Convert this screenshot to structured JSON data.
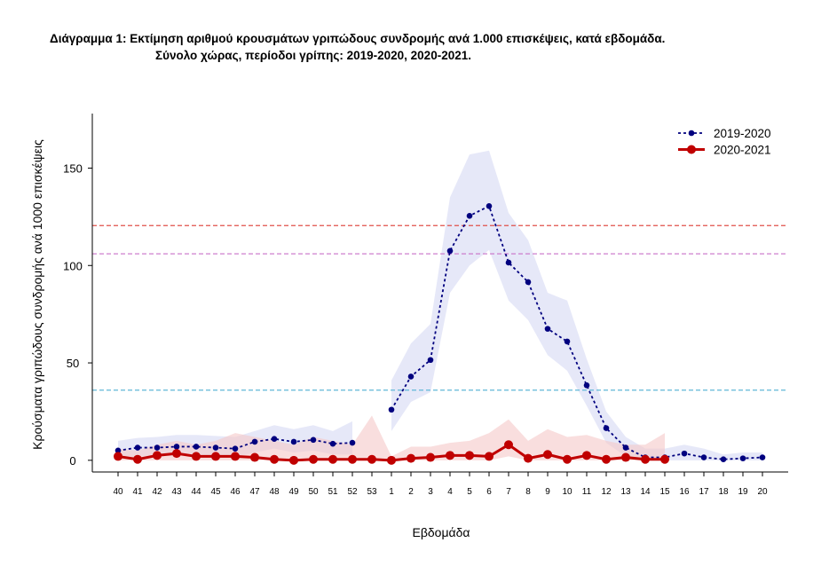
{
  "header": {
    "title_line1": "Διάγραμμα 1: Εκτίμηση αριθμού κρουσμάτων γριπώδους συνδρομής ανά 1.000 επισκέψεις, κατά εβδομάδα.",
    "title_line2": "Σύνολο χώρας, περίοδοι γρίπης:  2019-2020, 2020-2021."
  },
  "chart_data": {
    "type": "line",
    "xlabel": "Εβδομάδα",
    "ylabel": "Κρούσματα γριπώδους συνδρομής ανά 1000 επισκέψεις",
    "ylim": [
      -6,
      178
    ],
    "yticks": [
      0,
      50,
      100,
      150
    ],
    "categories": [
      "40",
      "41",
      "42",
      "43",
      "44",
      "45",
      "46",
      "47",
      "48",
      "49",
      "50",
      "51",
      "52",
      "53",
      "1",
      "2",
      "3",
      "4",
      "5",
      "6",
      "7",
      "8",
      "9",
      "10",
      "11",
      "12",
      "13",
      "14",
      "15",
      "16",
      "17",
      "18",
      "19",
      "20"
    ],
    "legend_position": "top-right",
    "reference_lines": [
      {
        "value": 120.5,
        "color": "#e0504a"
      },
      {
        "value": 106,
        "color": "#c870c8"
      },
      {
        "value": 36,
        "color": "#60b8d8"
      }
    ],
    "series": [
      {
        "name": "2019-2020",
        "color": "#00007f",
        "band_color": "#c8cdf0",
        "line_style": "dotted",
        "segments": [
          {
            "x": [
              "40",
              "41",
              "42",
              "43",
              "44",
              "45",
              "46",
              "47",
              "48",
              "49",
              "50",
              "51",
              "52"
            ],
            "values": [
              5,
              6.5,
              6.5,
              7,
              7,
              6.5,
              6,
              9.5,
              11,
              9.5,
              10.5,
              8.5,
              9
            ],
            "lower": [
              0.5,
              2,
              2,
              2.5,
              2,
              2,
              1.5,
              4,
              6,
              4,
              5,
              3,
              3
            ],
            "upper": [
              10,
              11.5,
              12,
              13,
              13,
              12.5,
              12,
              15,
              18,
              16,
              18,
              15,
              20
            ]
          },
          {
            "x": [
              "1",
              "2",
              "3",
              "4",
              "5",
              "6",
              "7",
              "8",
              "9",
              "10",
              "11",
              "12",
              "13",
              "14",
              "15",
              "16",
              "17",
              "18",
              "19",
              "20"
            ],
            "values": [
              26,
              43,
              51.5,
              107.5,
              125.5,
              130.5,
              101.5,
              91.5,
              67.5,
              61,
              38.5,
              16.5,
              6.5,
              1.5,
              1.5,
              3.5,
              1.5,
              0.5,
              1,
              1.5
            ],
            "lower": [
              15,
              30,
              35,
              86,
              100,
              108,
              82,
              72,
              54,
              46,
              28,
              9,
              2,
              0,
              0,
              0,
              0,
              0,
              0,
              0
            ],
            "upper": [
              41,
              60,
              70,
              135,
              157,
              159,
              127,
              113,
              86,
              82,
              52,
              25,
              12,
              6,
              6,
              8,
              6,
              3,
              4,
              4
            ]
          }
        ]
      },
      {
        "name": "2020-2021",
        "color": "#c00000",
        "band_color": "#f5c8c8",
        "line_style": "solid",
        "segments": [
          {
            "x": [
              "40",
              "41",
              "42",
              "43",
              "44",
              "45",
              "46",
              "47",
              "48",
              "49",
              "50",
              "51",
              "52",
              "53",
              "1",
              "2",
              "3",
              "4",
              "5",
              "6",
              "7",
              "8",
              "9",
              "10",
              "11",
              "12",
              "13",
              "14",
              "15"
            ],
            "values": [
              2,
              0.5,
              2.5,
              3.5,
              2,
              2,
              2,
              1.5,
              0.5,
              0,
              0.5,
              0.5,
              0.5,
              0.5,
              0,
              1,
              1.5,
              2.5,
              2.5,
              2,
              8,
              1,
              3,
              0.5,
              2.5,
              0.5,
              1.5,
              0.5,
              0.5
            ],
            "lower": [
              0,
              0,
              0,
              0,
              0,
              0,
              0,
              0,
              0,
              0,
              0,
              0,
              0,
              0,
              0,
              0,
              0,
              0,
              0,
              0,
              2,
              0,
              0,
              0,
              0,
              0,
              0,
              0,
              0
            ],
            "upper": [
              6,
              5,
              8,
              10,
              8,
              10,
              14,
              12,
              10,
              8,
              12,
              10,
              8,
              23,
              2,
              7,
              7,
              9,
              10,
              14,
              21,
              10,
              16,
              12,
              13,
              10,
              8,
              8,
              14
            ]
          }
        ]
      }
    ]
  }
}
